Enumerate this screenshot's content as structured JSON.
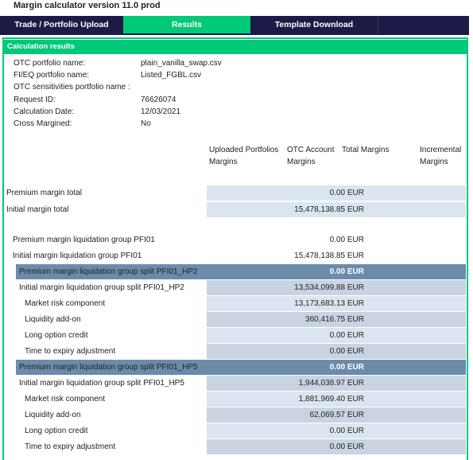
{
  "header": {
    "title": "Margin calculator version 11.0 prod"
  },
  "tabs": [
    "Trade / Portfolio Upload",
    "Results",
    "Template Download"
  ],
  "section_title": "Calculation results",
  "info": [
    {
      "label": "OTC portfolio name:",
      "value": "plain_vanilla_swap.csv"
    },
    {
      "label": "FI/EQ portfolio name:",
      "value": "Listed_FGBL.csv"
    },
    {
      "label": "OTC sensitivities portfolio name :"
    },
    {
      "label": "Request ID:",
      "value": "76626074"
    },
    {
      "label": "Calculation Date:",
      "value": "12/03/2021"
    },
    {
      "label": "Cross Margined:",
      "value": "No"
    }
  ],
  "column_headers": [
    "Uploaded Portfolios Margins",
    "OTC Account Margins",
    "Total Margins",
    "Incremental Margins"
  ],
  "totals": [
    {
      "label": "Premium margin total",
      "value": "0.00 EUR"
    },
    {
      "label": "Initial margin total",
      "value": "15,478,138.85 EUR"
    }
  ],
  "liquidation_group": {
    "premium": {
      "label": "Premium margin liquidation group PFI01",
      "value": "0.00 EUR"
    },
    "initial": {
      "label": "Initial margin liquidation group PFI01",
      "value": "15,478,138.85 EUR"
    },
    "splits": [
      {
        "premium": {
          "label": "Premium margin liquidation group split PFI01_HP2",
          "value": "0.00 EUR"
        },
        "initial": {
          "label": "Initial margin liquidation group split PFI01_HP2",
          "value": "13,534,099.88 EUR"
        },
        "components": [
          {
            "label": "Market risk component",
            "value": "13,173,683.13 EUR"
          },
          {
            "label": "Liquidity add-on",
            "value": "360,416.75 EUR"
          },
          {
            "label": "Long option credit",
            "value": "0.00 EUR"
          },
          {
            "label": "Time to expiry adjustment",
            "value": "0.00 EUR"
          }
        ]
      },
      {
        "premium": {
          "label": "Premium margin liquidation group split PFI01_HP5",
          "value": "0.00 EUR"
        },
        "initial": {
          "label": "Initial margin liquidation group split PFI01_HP5",
          "value": "1,944,038.97 EUR"
        },
        "components": [
          {
            "label": "Market risk component",
            "value": "1,881,969.40 EUR"
          },
          {
            "label": "Liquidity add-on",
            "value": "62,069.57 EUR"
          },
          {
            "label": "Long option credit",
            "value": "0.00 EUR"
          },
          {
            "label": "Time to expiry adjustment",
            "value": "0.00 EUR"
          }
        ]
      }
    ]
  }
}
